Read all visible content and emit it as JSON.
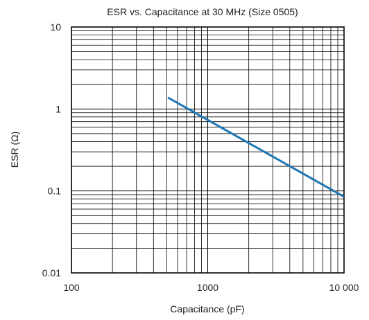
{
  "chart_data": {
    "type": "line",
    "title": "ESR vs. Capacitance at 30 MHz (Size 0505)",
    "xlabel": "Capacitance (pF)",
    "ylabel": "ESR (Ω)",
    "x_scale": "log",
    "y_scale": "log",
    "xlim": [
      100,
      10000
    ],
    "ylim": [
      0.01,
      10
    ],
    "x_ticks": [
      {
        "value": 100,
        "label": "100"
      },
      {
        "value": 1000,
        "label": "1000"
      },
      {
        "value": 10000,
        "label": "10 000"
      }
    ],
    "y_ticks": [
      {
        "value": 10,
        "label": "10"
      },
      {
        "value": 1,
        "label": "1"
      },
      {
        "value": 0.1,
        "label": "0.1"
      },
      {
        "value": 0.01,
        "label": "0.01"
      }
    ],
    "grid": true,
    "series": [
      {
        "color": "#1f77b4",
        "points": [
          {
            "x": 510,
            "y": 1.38
          },
          {
            "x": 10000,
            "y": 0.085
          }
        ]
      }
    ]
  },
  "colors": {
    "line": "#1f77b4",
    "grid": "#000000",
    "text": "#1f1f1f"
  }
}
